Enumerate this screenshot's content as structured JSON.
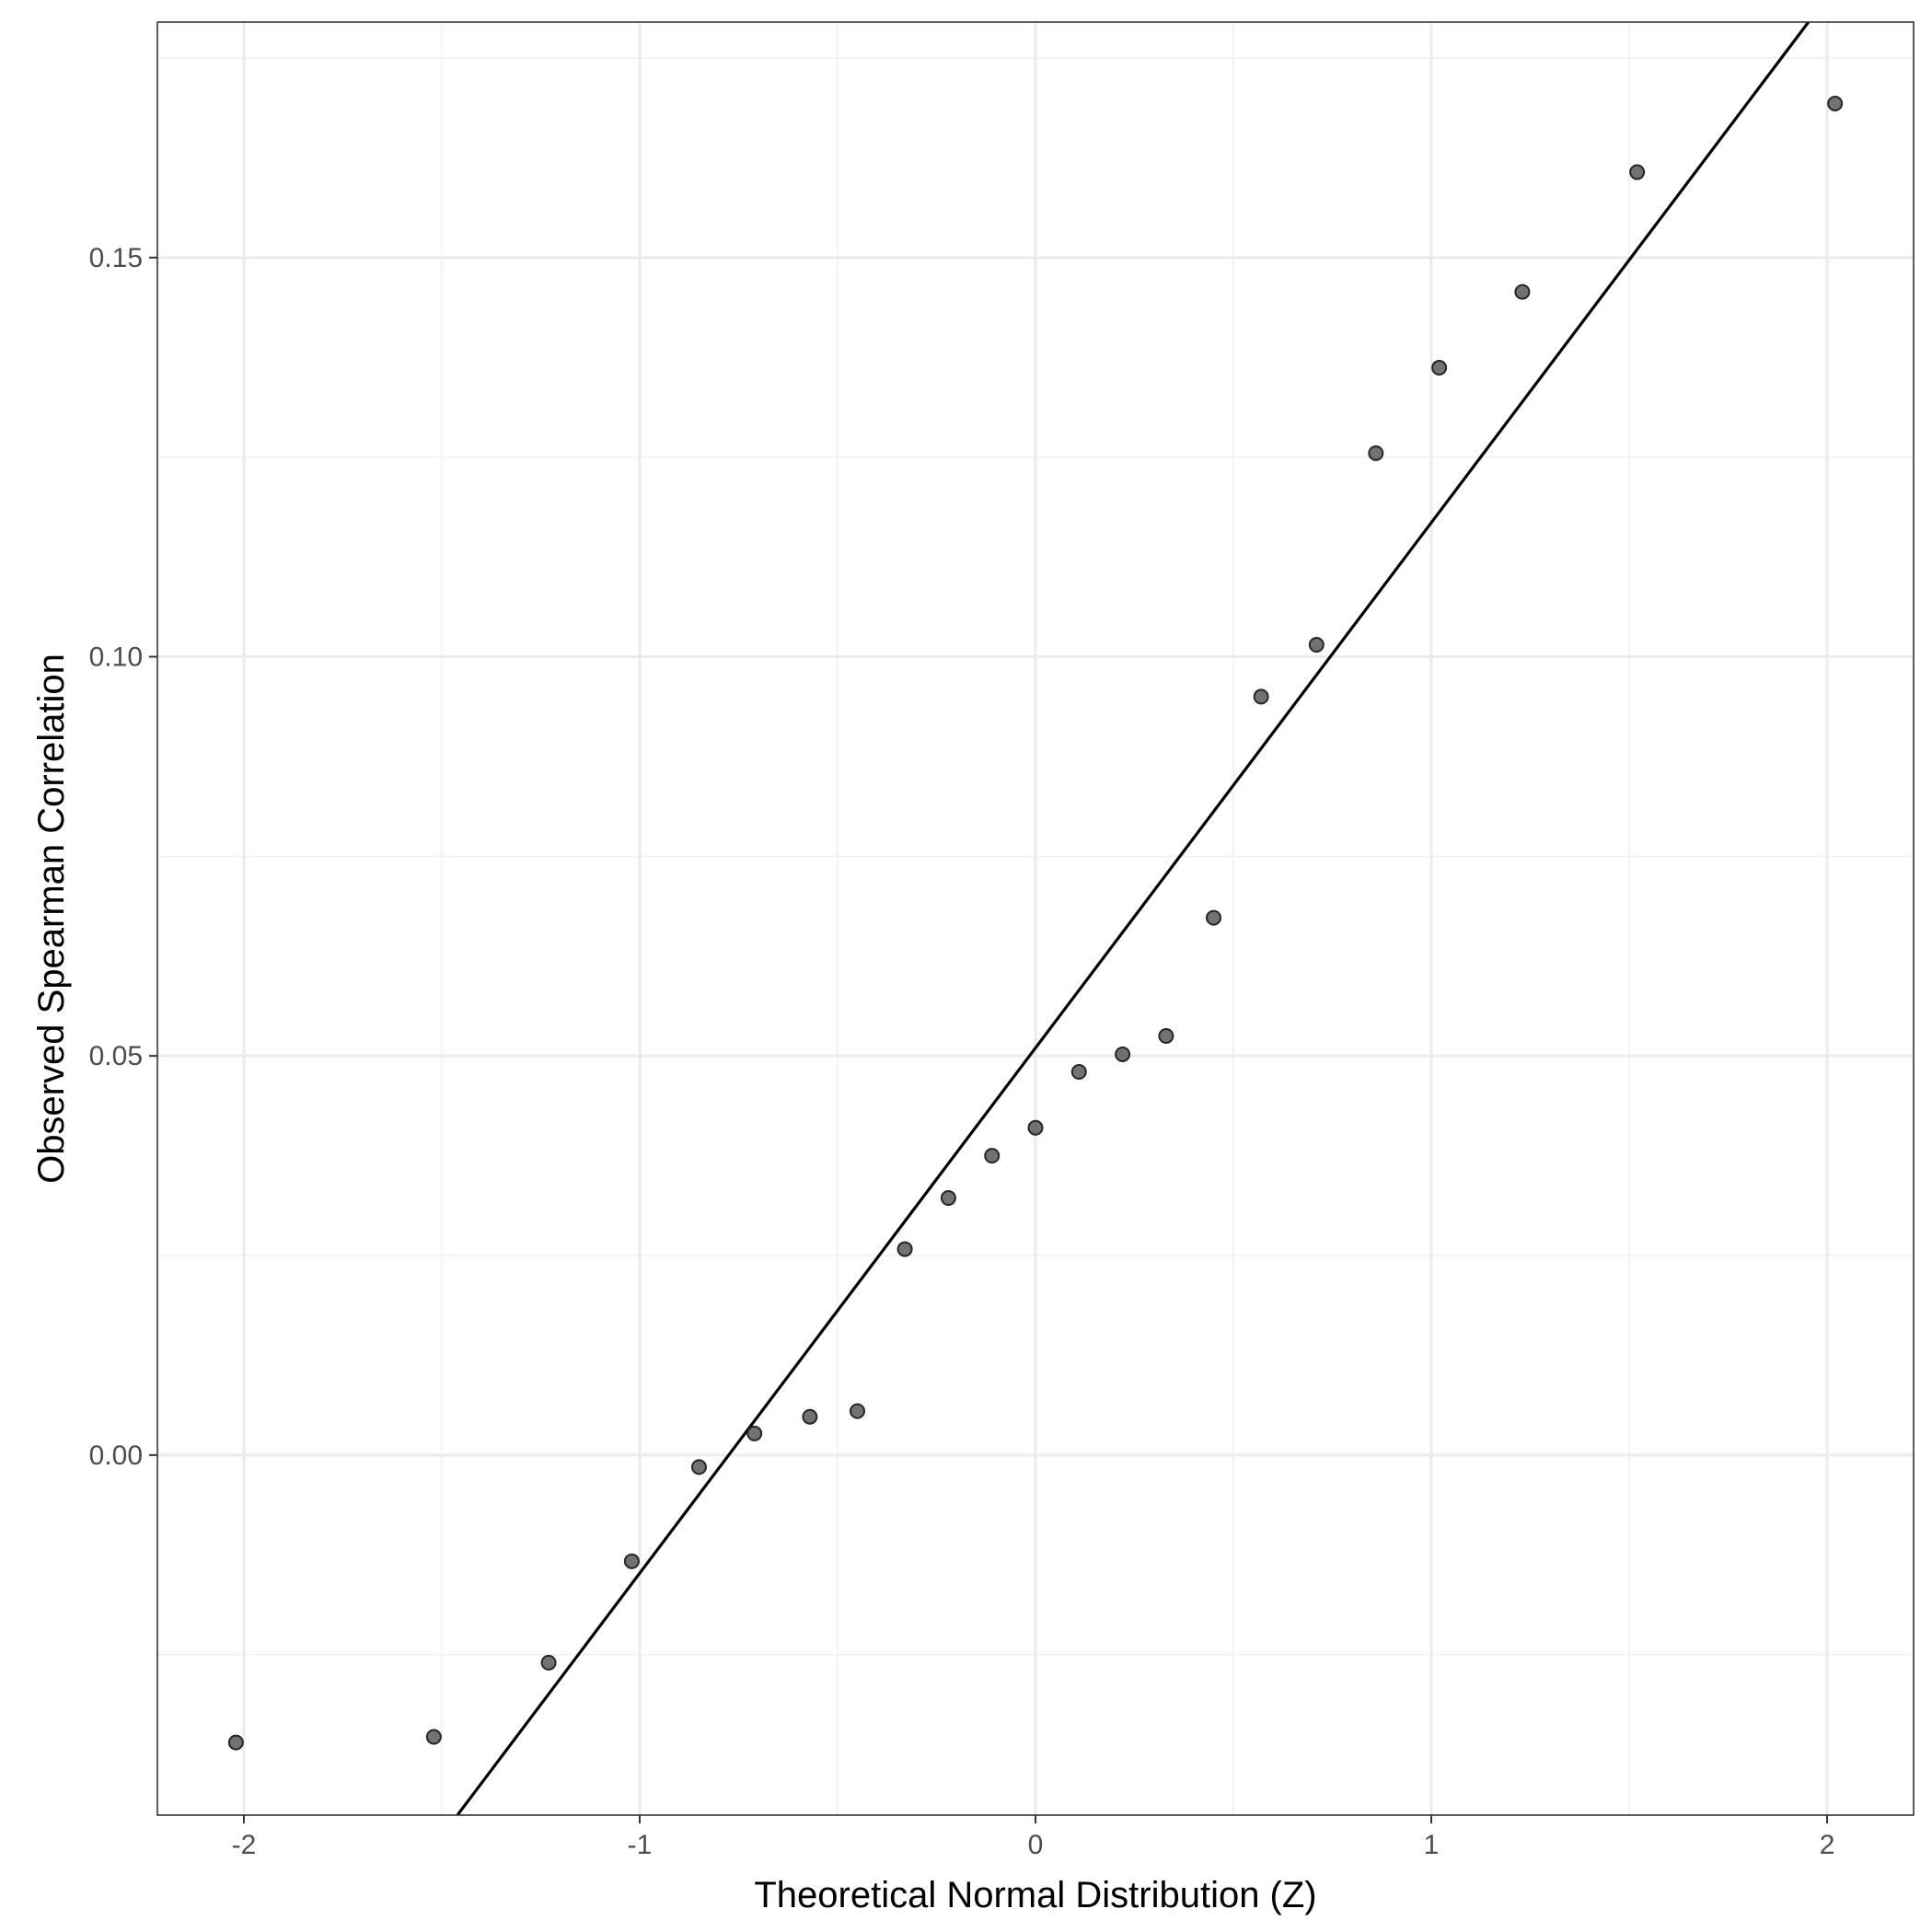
{
  "chart_data": {
    "type": "scatter",
    "title": "",
    "xlabel": "Theoretical Normal Distribution (Z)",
    "ylabel": "Observed Spearman Correlation",
    "xlim": [
      -2.2185,
      2.2185
    ],
    "ylim": [
      -0.0451,
      0.1795
    ],
    "x_ticks": [
      -2,
      -1,
      0,
      1,
      2
    ],
    "x_tick_labels": [
      "-2",
      "-1",
      "0",
      "1",
      "2"
    ],
    "y_ticks": [
      0.0,
      0.05,
      0.1,
      0.15
    ],
    "y_tick_labels": [
      "0.00",
      "0.05",
      "0.10",
      "0.15"
    ],
    "grid": true,
    "point_color": "#595959",
    "line_color": "#000000",
    "reference_line": {
      "intercept": 0.051,
      "slope": 0.0658
    },
    "points": [
      {
        "x": -2.02,
        "y": -0.036
      },
      {
        "x": -1.52,
        "y": -0.0353
      },
      {
        "x": -1.23,
        "y": -0.026
      },
      {
        "x": -1.02,
        "y": -0.0133
      },
      {
        "x": -0.85,
        "y": -0.0015
      },
      {
        "x": -0.71,
        "y": 0.0027
      },
      {
        "x": -0.57,
        "y": 0.0048
      },
      {
        "x": -0.45,
        "y": 0.0055
      },
      {
        "x": -0.33,
        "y": 0.0258
      },
      {
        "x": -0.22,
        "y": 0.0322
      },
      {
        "x": -0.11,
        "y": 0.0375
      },
      {
        "x": 0.0,
        "y": 0.041
      },
      {
        "x": 0.11,
        "y": 0.048
      },
      {
        "x": 0.22,
        "y": 0.0502
      },
      {
        "x": 0.33,
        "y": 0.0525
      },
      {
        "x": 0.45,
        "y": 0.0673
      },
      {
        "x": 0.57,
        "y": 0.095
      },
      {
        "x": 0.71,
        "y": 0.1015
      },
      {
        "x": 0.86,
        "y": 0.1255
      },
      {
        "x": 1.02,
        "y": 0.1362
      },
      {
        "x": 1.23,
        "y": 0.1457
      },
      {
        "x": 1.52,
        "y": 0.1607
      },
      {
        "x": 2.02,
        "y": 0.1693
      }
    ]
  }
}
